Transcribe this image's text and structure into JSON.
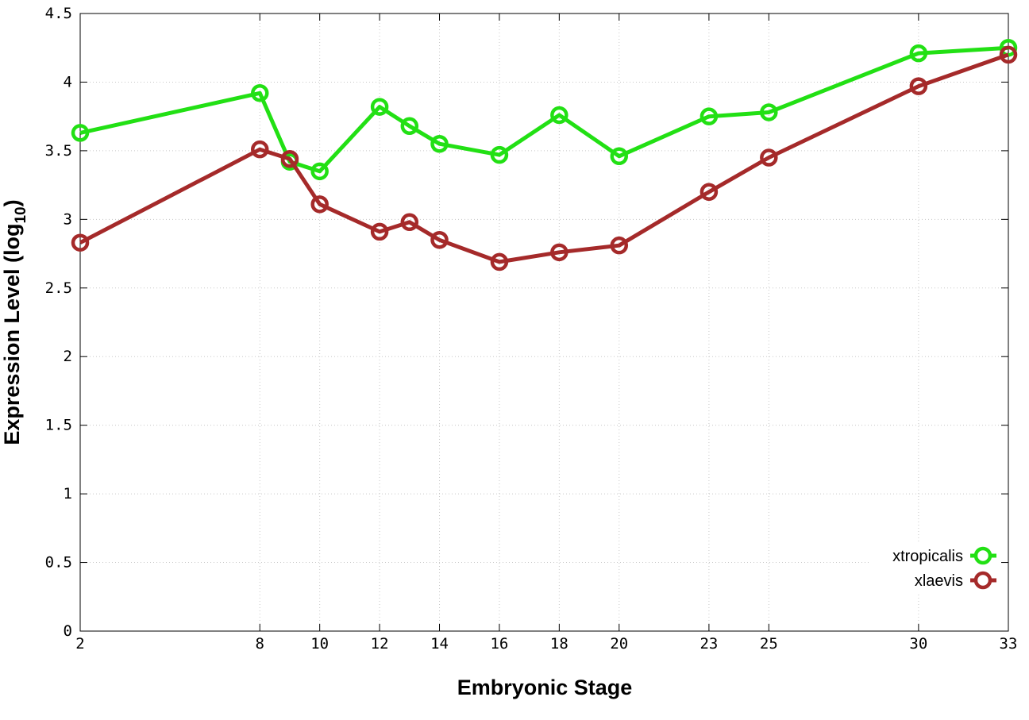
{
  "chart_data": {
    "type": "line",
    "xlabel": "Embryonic Stage",
    "ylabel_main": "Expression Level (log",
    "ylabel_sub": "10",
    "ylabel_close": ")",
    "x_ticks": [
      2,
      8,
      10,
      12,
      14,
      16,
      18,
      20,
      23,
      25,
      30,
      33
    ],
    "x_tick_labels": [
      "2",
      "8",
      "10",
      "12",
      "14",
      "16",
      "18",
      "20",
      "23",
      "25",
      "30",
      "33"
    ],
    "y_ticks": [
      0,
      0.5,
      1,
      1.5,
      2,
      2.5,
      3,
      3.5,
      4,
      4.5
    ],
    "y_tick_labels": [
      "0",
      "0.5",
      "1",
      "1.5",
      "2",
      "2.5",
      "3",
      "3.5",
      "4",
      "4.5"
    ],
    "ylim": [
      0,
      4.5
    ],
    "grid": true,
    "legend_position": "bottom-right",
    "series": [
      {
        "name": "xtropicalis",
        "color": "#22e014",
        "x": [
          2,
          8,
          9,
          10,
          12,
          13,
          14,
          16,
          18,
          20,
          23,
          25,
          30,
          33
        ],
        "values": [
          3.63,
          3.92,
          3.42,
          3.35,
          3.82,
          3.68,
          3.55,
          3.47,
          3.76,
          3.46,
          3.75,
          3.78,
          4.21,
          4.25
        ]
      },
      {
        "name": "xlaevis",
        "color": "#a52a2a",
        "x": [
          2,
          8,
          9,
          10,
          12,
          13,
          14,
          16,
          18,
          20,
          23,
          25,
          30,
          33
        ],
        "values": [
          2.83,
          3.51,
          3.44,
          3.11,
          2.91,
          2.98,
          2.85,
          2.69,
          2.76,
          2.81,
          3.2,
          3.45,
          3.97,
          4.2
        ]
      }
    ]
  }
}
